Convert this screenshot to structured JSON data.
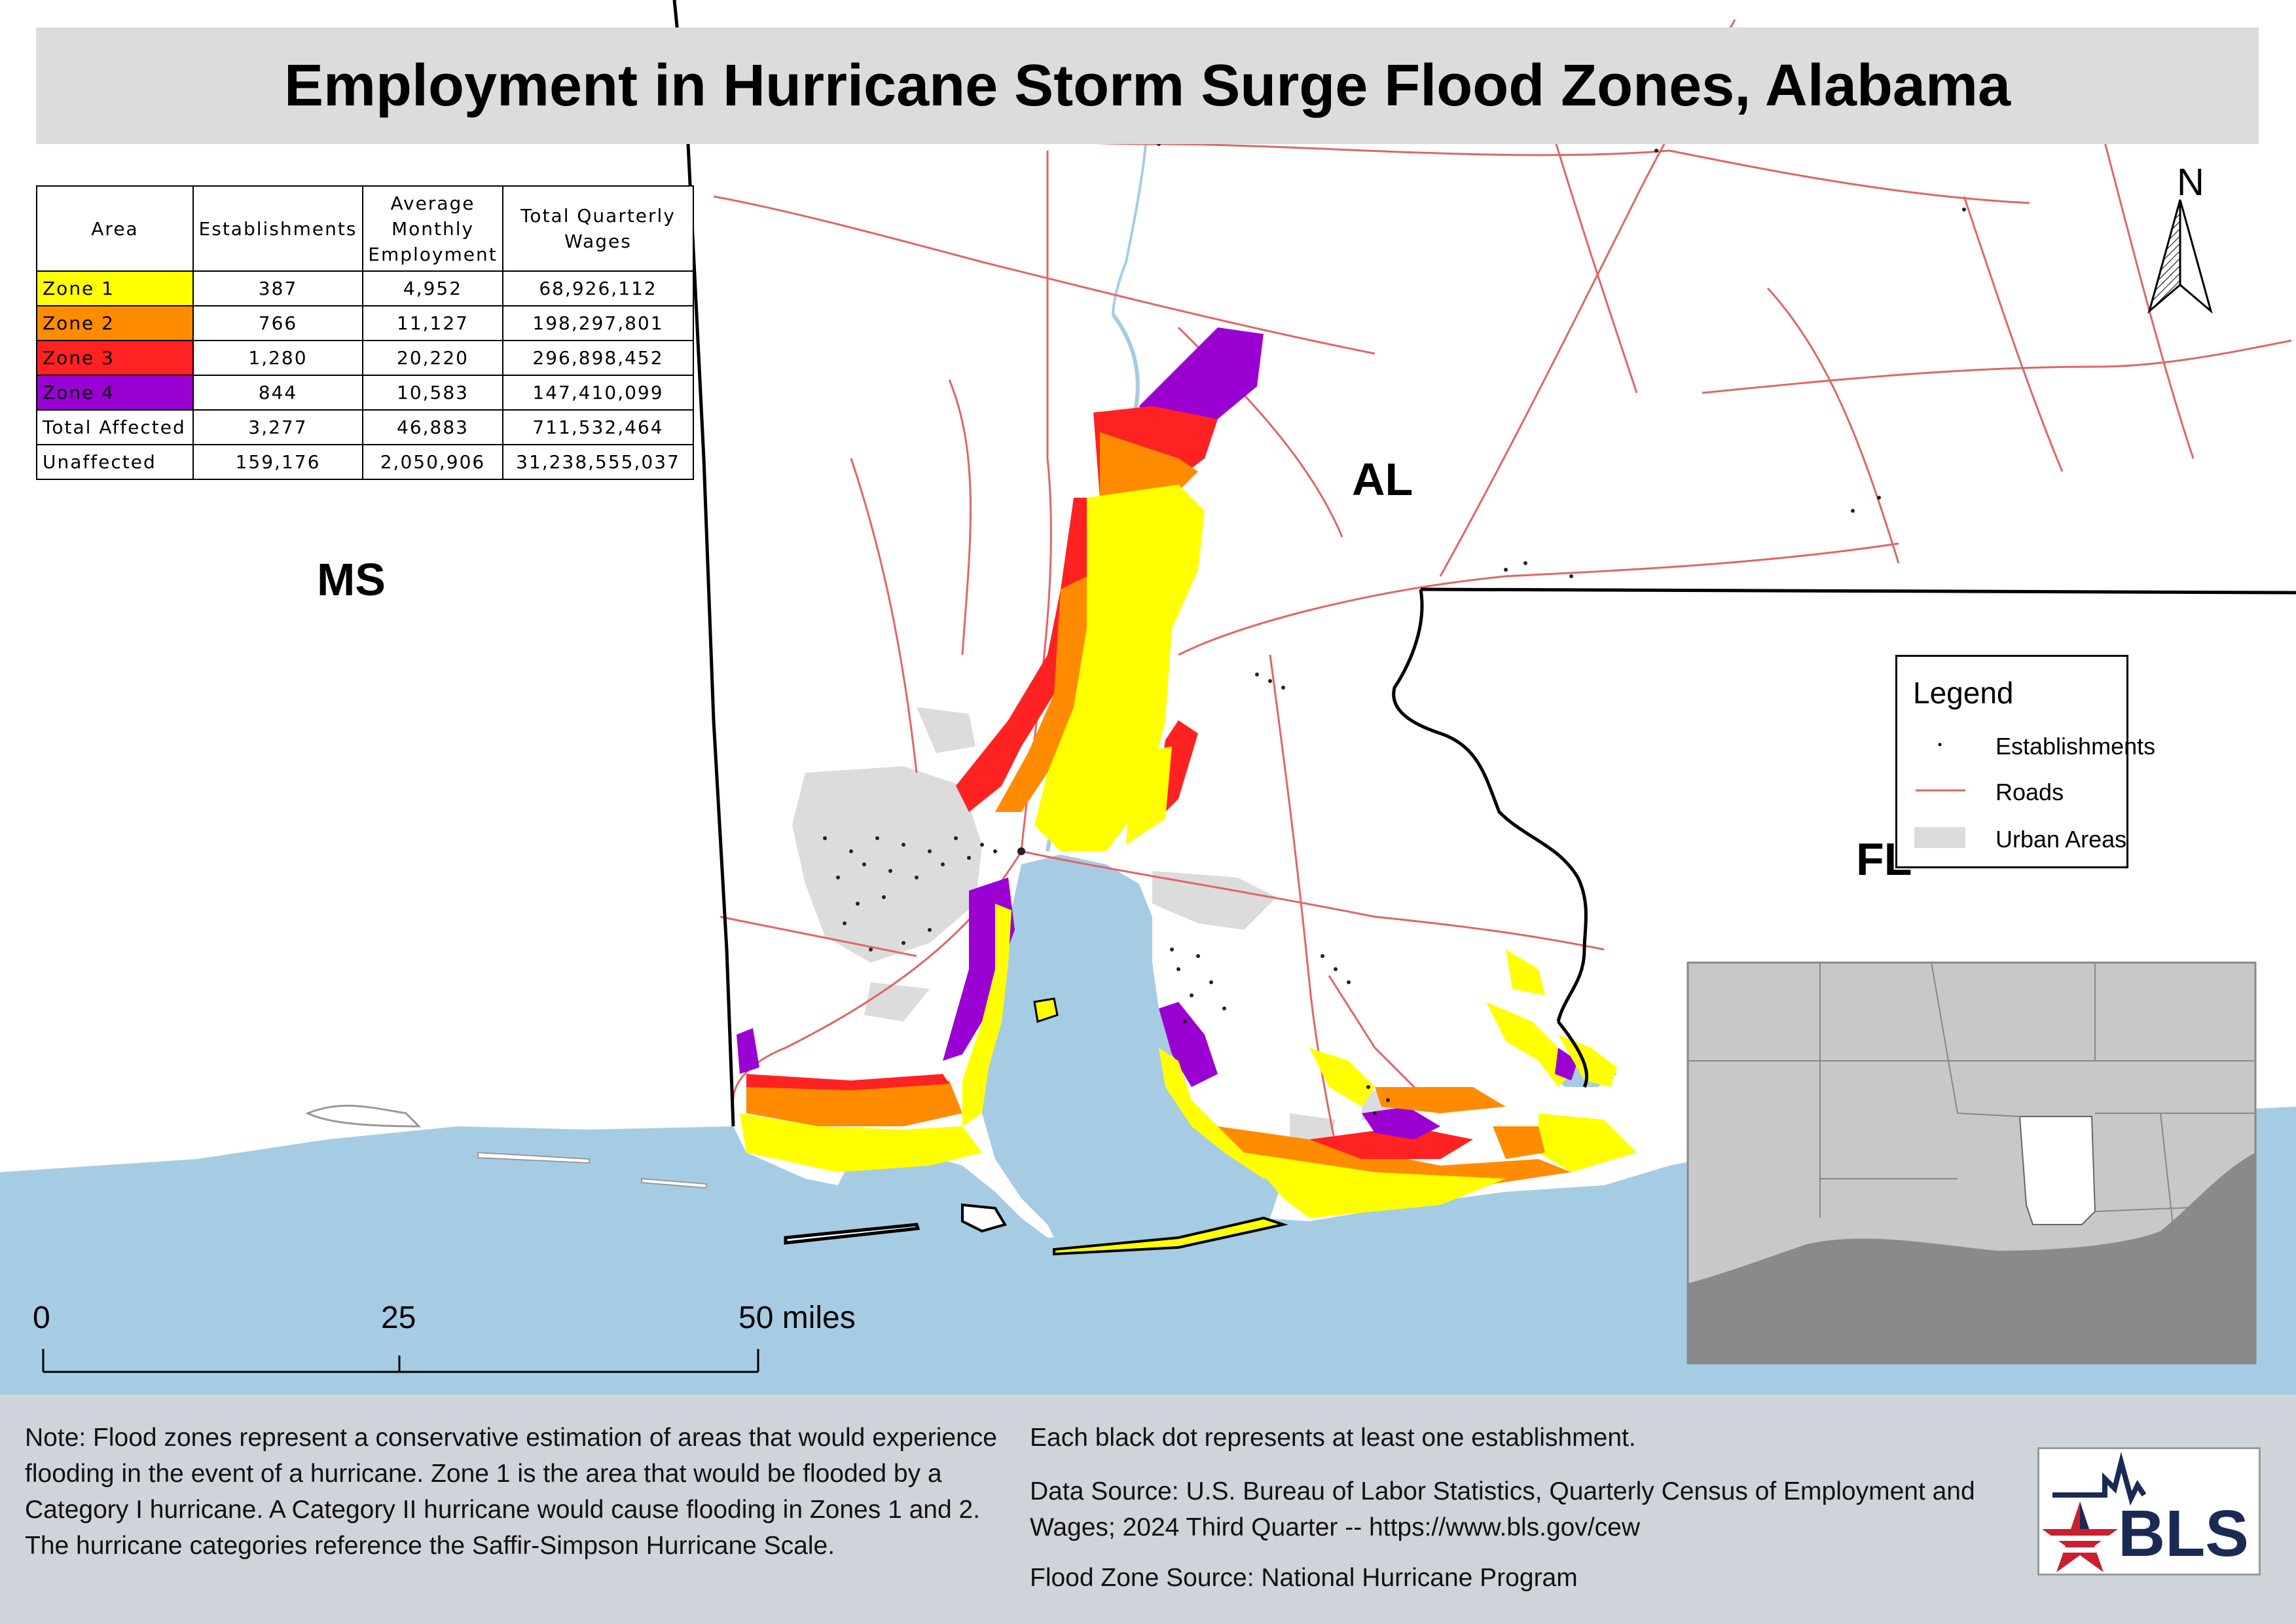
{
  "title": "Employment in Hurricane Storm Surge Flood Zones, Alabama",
  "table": {
    "headers": [
      "Area",
      "Establishments",
      "Average Monthly Employment",
      "Total Quarterly Wages"
    ],
    "rows": [
      {
        "area": "Zone 1",
        "color": "#ffff00",
        "establishments": "387",
        "employment": "4,952",
        "wages": "68,926,112"
      },
      {
        "area": "Zone 2",
        "color": "#ff8c00",
        "establishments": "766",
        "employment": "11,127",
        "wages": "198,297,801"
      },
      {
        "area": "Zone 3",
        "color": "#ff2222",
        "establishments": "1,280",
        "employment": "20,220",
        "wages": "296,898,452"
      },
      {
        "area": "Zone 4",
        "color": "#9b00d3",
        "establishments": "844",
        "employment": "10,583",
        "wages": "147,410,099"
      },
      {
        "area": "Total Affected",
        "color": "",
        "establishments": "3,277",
        "employment": "46,883",
        "wages": "711,532,464"
      },
      {
        "area": "Unaffected",
        "color": "",
        "establishments": "159,176",
        "employment": "2,050,906",
        "wages": "31,238,555,037"
      }
    ]
  },
  "state_labels": {
    "ms": "MS",
    "al": "AL",
    "fl": "FL"
  },
  "legend": {
    "title": "Legend",
    "items": [
      {
        "label": "Establishments",
        "icon": "dot-icon"
      },
      {
        "label": "Roads",
        "icon": "road-line-icon",
        "color": "#e06666"
      },
      {
        "label": "Urban Areas",
        "icon": "urban-area-swatch",
        "color": "#dcdcdc"
      }
    ]
  },
  "north_arrow": "N",
  "scale": {
    "labels": [
      "0",
      "25",
      "50 miles"
    ]
  },
  "colors": {
    "water": "#a6cce3",
    "zone1": "#ffff00",
    "zone2": "#ff8c00",
    "zone3": "#ff2222",
    "zone4": "#9b00d3",
    "roads": "#e06666",
    "urban": "#dcdcdc",
    "footer": "#cfd4da"
  },
  "footer": {
    "note": "Note: Flood zones represent a conservative estimation of areas that would experience flooding in the event of a hurricane. Zone 1 is the area that would be flooded by a Category I hurricane. A Category II hurricane would cause flooding in Zones 1 and 2. The hurricane categories reference the Saffir-Simpson Hurricane Scale.",
    "dot_note": "Each black dot represents at least one establishment.",
    "data_source": "Data Source: U.S. Bureau of Labor Statistics, Quarterly Census of Employment and Wages; 2024 Third Quarter -- https://www.bls.gov/cew",
    "flood_source": "Flood Zone Source: National Hurricane Program"
  },
  "logo_text": "BLS"
}
